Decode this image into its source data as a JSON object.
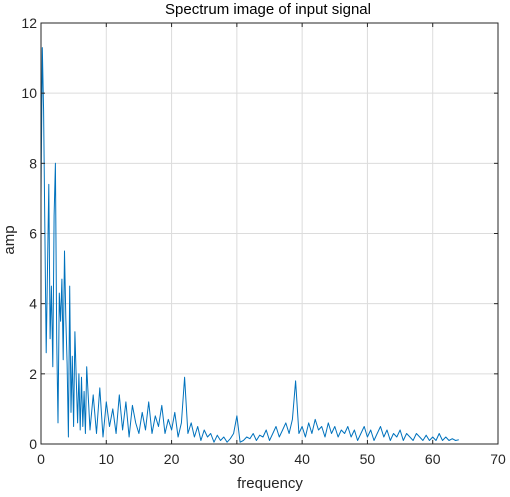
{
  "chart_data": {
    "type": "line",
    "title": "Spectrum image of input signal",
    "xlabel": "frequency",
    "ylabel": "amp",
    "xlim": [
      0,
      70
    ],
    "ylim": [
      0,
      12
    ],
    "xticks": [
      "0",
      "10",
      "20",
      "30",
      "40",
      "50",
      "60",
      "70"
    ],
    "yticks": [
      "0",
      "2",
      "4",
      "6",
      "8",
      "10",
      "12"
    ],
    "grid": true,
    "series": [
      {
        "color": "#0072BD",
        "x": [
          0,
          0.2,
          0.4,
          0.6,
          0.8,
          1.0,
          1.2,
          1.4,
          1.6,
          1.8,
          2.0,
          2.2,
          2.4,
          2.6,
          2.8,
          3.0,
          3.2,
          3.4,
          3.6,
          3.8,
          4.0,
          4.2,
          4.4,
          4.6,
          4.8,
          5.0,
          5.2,
          5.4,
          5.6,
          5.8,
          6.0,
          6.2,
          6.4,
          6.6,
          6.8,
          7.0,
          7.5,
          8.0,
          8.5,
          9.0,
          9.5,
          10,
          10.5,
          11,
          11.5,
          12,
          12.5,
          13,
          13.5,
          14,
          14.5,
          15,
          15.5,
          16,
          16.5,
          17,
          17.5,
          18,
          18.5,
          19,
          19.5,
          20,
          20.5,
          21,
          21.5,
          22,
          22.5,
          23,
          23.5,
          24,
          24.5,
          25,
          25.5,
          26,
          26.5,
          27,
          27.5,
          28,
          28.5,
          29,
          29.5,
          30,
          30.5,
          31,
          31.5,
          32,
          32.5,
          33,
          33.5,
          34,
          34.5,
          35,
          35.5,
          36,
          36.5,
          37,
          37.5,
          38,
          38.5,
          39,
          39.5,
          40,
          40.5,
          41,
          41.5,
          42,
          42.5,
          43,
          43.5,
          44,
          44.5,
          45,
          45.5,
          46,
          46.5,
          47,
          47.5,
          48,
          48.5,
          49,
          49.5,
          50,
          50.5,
          51,
          51.5,
          52,
          52.5,
          53,
          53.5,
          54,
          54.5,
          55,
          55.5,
          56,
          56.5,
          57,
          57.5,
          58,
          58.5,
          59,
          59.5,
          60,
          60.5,
          61,
          61.5,
          62,
          62.5,
          63,
          63.5,
          64
        ],
        "y": [
          7.0,
          11.3,
          9.5,
          6.0,
          2.6,
          5.0,
          7.4,
          3.0,
          4.5,
          2.2,
          6.5,
          8.0,
          3.0,
          0.6,
          4.3,
          3.5,
          4.7,
          2.4,
          5.5,
          3.6,
          2.3,
          0.2,
          4.5,
          0.9,
          2.5,
          0.5,
          3.2,
          1.8,
          0.6,
          2.0,
          0.4,
          1.9,
          0.5,
          1.5,
          0.3,
          2.2,
          0.4,
          1.4,
          0.3,
          1.6,
          0.2,
          1.2,
          0.5,
          1.0,
          0.3,
          1.4,
          0.4,
          1.2,
          0.2,
          1.1,
          0.6,
          0.3,
          0.9,
          0.4,
          1.2,
          0.3,
          0.8,
          0.5,
          1.1,
          0.3,
          0.7,
          0.4,
          0.9,
          0.2,
          0.6,
          1.9,
          0.3,
          0.6,
          0.2,
          0.5,
          0.1,
          0.4,
          0.2,
          0.3,
          0.05,
          0.25,
          0.1,
          0.2,
          0.05,
          0.15,
          0.3,
          0.8,
          0.05,
          0.1,
          0.2,
          0.15,
          0.3,
          0.1,
          0.25,
          0.2,
          0.4,
          0.1,
          0.3,
          0.5,
          0.2,
          0.4,
          0.6,
          0.3,
          0.7,
          1.8,
          0.3,
          0.5,
          0.2,
          0.6,
          0.3,
          0.7,
          0.4,
          0.5,
          0.2,
          0.6,
          0.3,
          0.5,
          0.2,
          0.4,
          0.3,
          0.5,
          0.2,
          0.4,
          0.1,
          0.3,
          0.5,
          0.2,
          0.4,
          0.1,
          0.3,
          0.5,
          0.2,
          0.4,
          0.1,
          0.3,
          0.2,
          0.4,
          0.1,
          0.3,
          0.2,
          0.1,
          0.3,
          0.2,
          0.1,
          0.25,
          0.1,
          0.2,
          0.1,
          0.3,
          0.1,
          0.2,
          0.1,
          0.15,
          0.1,
          0.12
        ]
      }
    ]
  }
}
